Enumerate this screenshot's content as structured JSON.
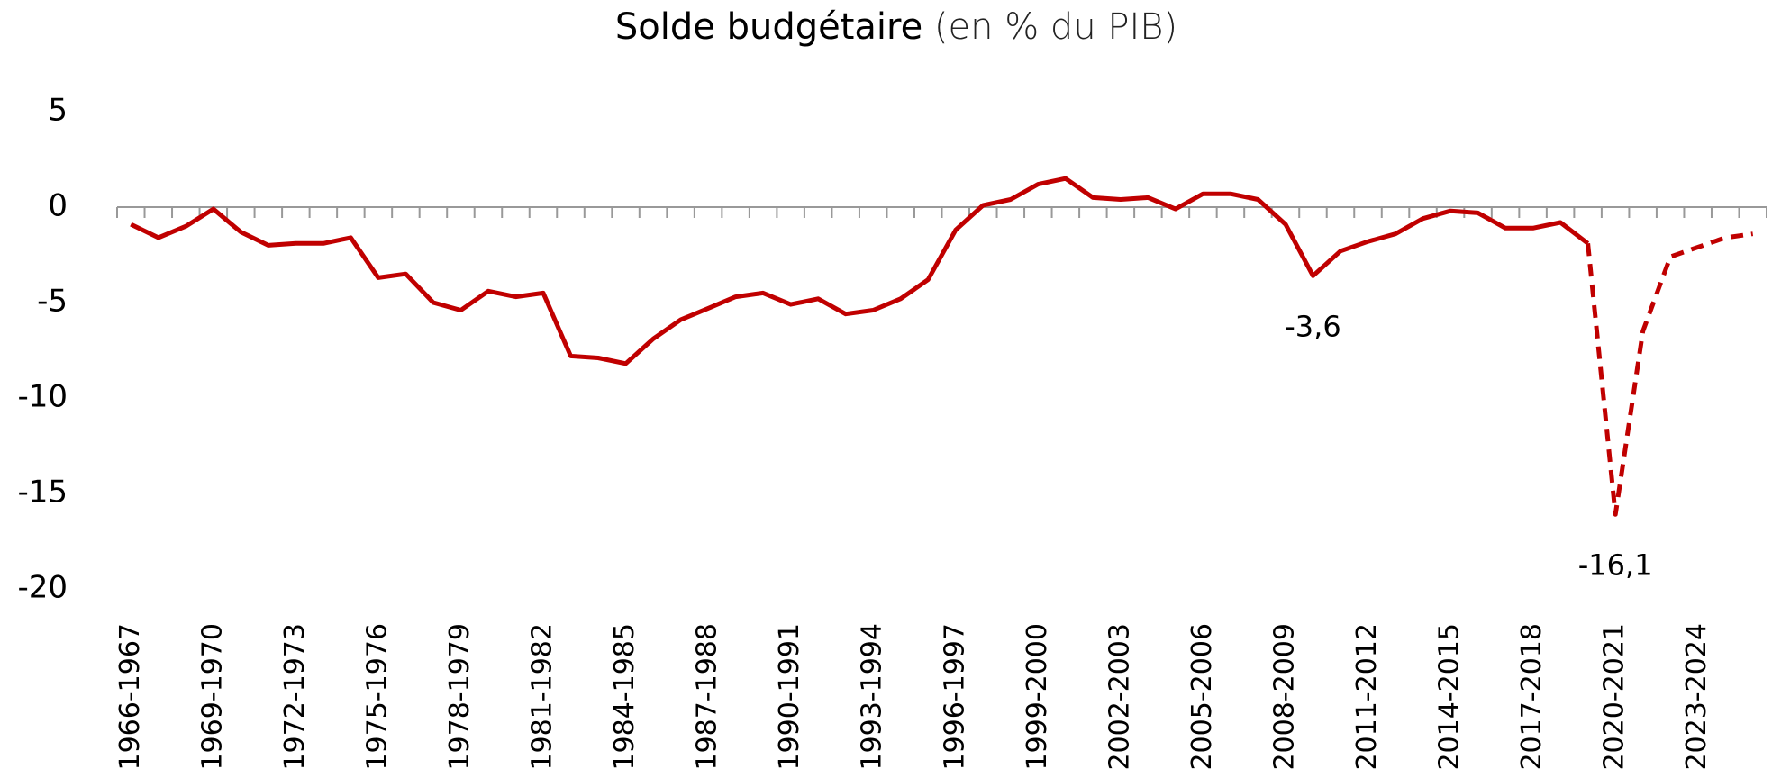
{
  "chart_data": {
    "type": "line",
    "title": "Solde budgétaire",
    "subtitle": "(en % du PIB)",
    "categories": [
      "1966-1967",
      null,
      null,
      "1969-1970",
      null,
      null,
      "1972-1973",
      null,
      null,
      "1975-1976",
      null,
      null,
      "1978-1979",
      null,
      null,
      "1981-1982",
      null,
      null,
      "1984-1985",
      null,
      null,
      "1987-1988",
      null,
      null,
      "1990-1991",
      null,
      null,
      "1993-1994",
      null,
      null,
      "1996-1997",
      null,
      null,
      "1999-2000",
      null,
      null,
      "2002-2003",
      null,
      null,
      "2005-2006",
      null,
      null,
      "2008-2009",
      null,
      null,
      "2011-2012",
      null,
      null,
      "2014-2015",
      null,
      null,
      "2017-2018",
      null,
      null,
      "2020-2021",
      null,
      null,
      "2023-2024",
      null,
      null
    ],
    "series": [
      {
        "color": "#c00000",
        "dash": false,
        "values": [
          -0.9,
          -1.6,
          -1.0,
          -0.1,
          -1.3,
          -2.0,
          -1.9,
          -1.9,
          -1.6,
          -3.7,
          -3.5,
          -5.0,
          -5.4,
          -4.4,
          -4.7,
          -4.5,
          -7.8,
          -7.9,
          -8.2,
          -6.9,
          -5.9,
          -5.3,
          -4.7,
          -4.5,
          -5.1,
          -4.8,
          -5.6,
          -5.4,
          -4.8,
          -3.8,
          -1.2,
          0.1,
          0.4,
          1.2,
          1.5,
          0.5,
          0.4,
          0.5,
          -0.1,
          0.7,
          0.7,
          0.4,
          -0.9,
          -3.6,
          -2.3,
          -1.8,
          -1.4,
          -0.6,
          -0.2,
          -0.3,
          -1.1,
          -1.1,
          -0.8,
          -1.9,
          null,
          null,
          null,
          null,
          null,
          null
        ],
        "value_labels": [
          null,
          null,
          null,
          null,
          null,
          null,
          null,
          null,
          null,
          null,
          null,
          null,
          null,
          null,
          null,
          null,
          null,
          null,
          null,
          null,
          null,
          null,
          null,
          null,
          null,
          null,
          null,
          null,
          null,
          null,
          null,
          null,
          null,
          null,
          null,
          null,
          null,
          null,
          null,
          null,
          null,
          null,
          null,
          "-3,6",
          null,
          null,
          null,
          null,
          null,
          null,
          null,
          null,
          null,
          null,
          null,
          null,
          null,
          null,
          null,
          null
        ]
      },
      {
        "color": "#c00000",
        "dash": true,
        "values": [
          null,
          null,
          null,
          null,
          null,
          null,
          null,
          null,
          null,
          null,
          null,
          null,
          null,
          null,
          null,
          null,
          null,
          null,
          null,
          null,
          null,
          null,
          null,
          null,
          null,
          null,
          null,
          null,
          null,
          null,
          null,
          null,
          null,
          null,
          null,
          null,
          null,
          null,
          null,
          null,
          null,
          null,
          null,
          null,
          null,
          null,
          null,
          null,
          null,
          null,
          null,
          null,
          null,
          -1.9,
          -16.1,
          -6.5,
          -2.6,
          -2.1,
          -1.6,
          -1.4
        ],
        "value_labels": [
          null,
          null,
          null,
          null,
          null,
          null,
          null,
          null,
          null,
          null,
          null,
          null,
          null,
          null,
          null,
          null,
          null,
          null,
          null,
          null,
          null,
          null,
          null,
          null,
          null,
          null,
          null,
          null,
          null,
          null,
          null,
          null,
          null,
          null,
          null,
          null,
          null,
          null,
          null,
          null,
          null,
          null,
          null,
          null,
          null,
          null,
          null,
          null,
          null,
          null,
          null,
          null,
          null,
          null,
          "-16,1",
          null,
          null,
          null,
          null,
          null
        ]
      }
    ],
    "ylim": [
      -20,
      5
    ],
    "yticks": [
      -20,
      -15,
      -10,
      -5,
      0,
      5
    ],
    "grid": false
  }
}
